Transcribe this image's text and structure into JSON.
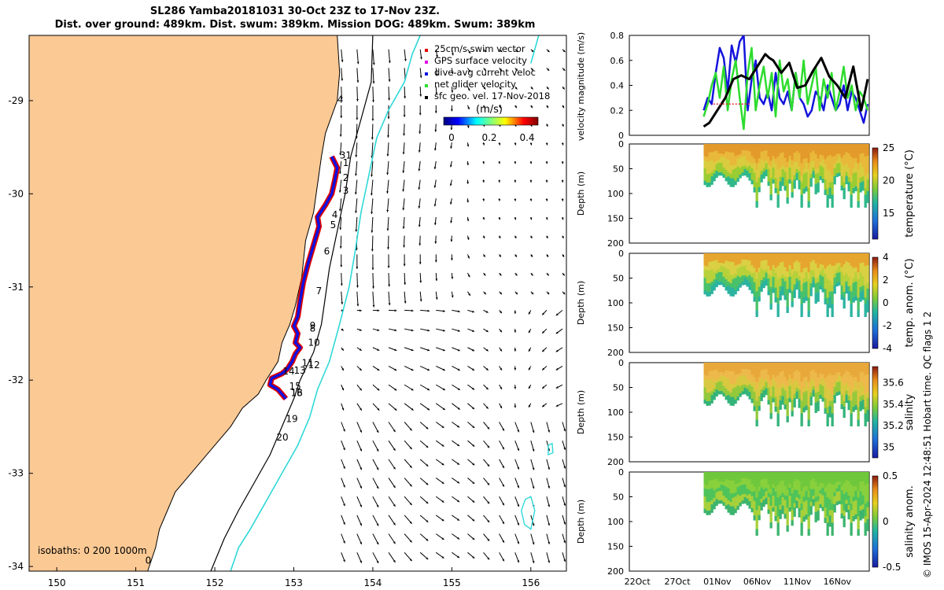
{
  "header": {
    "title_line1": "SL286 Yamba20181031 30-Oct 23Z to 17-Nov 23Z.",
    "title_line2": "Dist. over ground: 489km. Dist. swum: 389km. Mission DOG: 489km. Swum: 389km"
  },
  "credit": "© IMOS 15-Apr-2024 12:48:51 Hobart time. QC flags 1  2",
  "colors": {
    "land": "#FBC994",
    "track_red": "#E00000",
    "track_blue": "#1010E0",
    "isobath_cyan": "#30D8D8",
    "speed_blue": "#1414DC",
    "speed_green": "#2EDC2E",
    "speed_black": "#000000",
    "speed_red": "#E03030"
  },
  "chart_data": [
    {
      "type": "map",
      "name": "glider-track-map",
      "x_ticks": [
        "150",
        "151",
        "152",
        "153",
        "154",
        "155",
        "156"
      ],
      "y_ticks": [
        "-29",
        "-30",
        "-31",
        "-32",
        "-33",
        "-34"
      ],
      "xlim": [
        149.65,
        156.45
      ],
      "ylim": [
        -34.05,
        -28.3
      ],
      "legend": [
        {
          "label": "25cm/s swim vector",
          "marker": "red"
        },
        {
          "label": "GPS surface velocity",
          "marker": "magenta"
        },
        {
          "label": "dive-avg current veloc",
          "marker": "blue"
        },
        {
          "label": "net glider velocity",
          "marker": "green"
        },
        {
          "label": "sfc geo. vel. 17-Nov-2018",
          "marker": "black"
        }
      ],
      "colorbar": {
        "label": "(m/s)",
        "ticks": [
          "0",
          "0.2",
          "0.4"
        ],
        "range": [
          0,
          0.5
        ]
      },
      "isobath_label": "isobaths: 0   200  1000m",
      "track_labels": [
        {
          "text": "31",
          "lon": 153.58,
          "lat": -29.62
        },
        {
          "text": "1",
          "lon": 153.62,
          "lat": -29.7
        },
        {
          "text": "2",
          "lon": 153.62,
          "lat": -29.86
        },
        {
          "text": "3",
          "lon": 153.62,
          "lat": -30.0
        },
        {
          "text": "4",
          "lon": 153.48,
          "lat": -30.26
        },
        {
          "text": "5",
          "lon": 153.46,
          "lat": -30.37
        },
        {
          "text": "6",
          "lon": 153.38,
          "lat": -30.65
        },
        {
          "text": "7",
          "lon": 153.28,
          "lat": -31.08
        },
        {
          "text": "8",
          "lon": 153.2,
          "lat": -31.48
        },
        {
          "text": "9",
          "lon": 153.2,
          "lat": -31.45
        },
        {
          "text": "10",
          "lon": 153.18,
          "lat": -31.63
        },
        {
          "text": "11",
          "lon": 153.1,
          "lat": -31.85
        },
        {
          "text": "12",
          "lon": 153.18,
          "lat": -31.87
        },
        {
          "text": "13",
          "lon": 153.0,
          "lat": -31.93
        },
        {
          "text": "14",
          "lon": 152.86,
          "lat": -31.94
        },
        {
          "text": "15",
          "lon": 152.94,
          "lat": -32.1
        },
        {
          "text": "16",
          "lon": 152.96,
          "lat": -32.17
        },
        {
          "text": "18",
          "lon": 152.96,
          "lat": -32.17
        },
        {
          "text": "19",
          "lon": 152.9,
          "lat": -32.45
        },
        {
          "text": "20",
          "lon": 152.78,
          "lat": -32.65
        },
        {
          "text": "4",
          "lon": 153.55,
          "lat": -29.02
        },
        {
          "text": "0",
          "lon": 151.12,
          "lat": -33.97
        }
      ],
      "coastline": [
        [
          153.55,
          -28.3
        ],
        [
          153.58,
          -28.7
        ],
        [
          153.55,
          -29.0
        ],
        [
          153.4,
          -29.35
        ],
        [
          153.35,
          -29.6
        ],
        [
          153.3,
          -29.9
        ],
        [
          153.25,
          -30.2
        ],
        [
          153.15,
          -30.5
        ],
        [
          153.1,
          -30.9
        ],
        [
          153.02,
          -31.2
        ],
        [
          152.95,
          -31.4
        ],
        [
          152.85,
          -31.6
        ],
        [
          152.8,
          -31.8
        ],
        [
          152.65,
          -32.0
        ],
        [
          152.55,
          -32.15
        ],
        [
          152.35,
          -32.3
        ],
        [
          152.2,
          -32.5
        ],
        [
          152.0,
          -32.7
        ],
        [
          151.8,
          -32.9
        ],
        [
          151.65,
          -33.05
        ],
        [
          151.5,
          -33.2
        ],
        [
          151.4,
          -33.4
        ],
        [
          151.3,
          -33.6
        ],
        [
          151.25,
          -33.8
        ],
        [
          151.15,
          -34.05
        ]
      ],
      "isobath_200": [
        [
          154.0,
          -28.3
        ],
        [
          153.98,
          -28.8
        ],
        [
          153.85,
          -29.2
        ],
        [
          153.72,
          -29.6
        ],
        [
          153.65,
          -30.0
        ],
        [
          153.55,
          -30.4
        ],
        [
          153.45,
          -30.8
        ],
        [
          153.4,
          -31.1
        ],
        [
          153.35,
          -31.4
        ],
        [
          153.25,
          -31.7
        ],
        [
          153.08,
          -32.0
        ],
        [
          153.0,
          -32.2
        ],
        [
          152.85,
          -32.5
        ],
        [
          152.7,
          -32.8
        ],
        [
          152.5,
          -33.1
        ],
        [
          152.3,
          -33.4
        ],
        [
          152.12,
          -33.7
        ],
        [
          151.95,
          -34.05
        ]
      ],
      "isobath_1000": [
        [
          154.6,
          -28.3
        ],
        [
          154.5,
          -28.5
        ],
        [
          154.4,
          -28.8
        ],
        [
          154.2,
          -29.1
        ],
        [
          154.05,
          -29.4
        ],
        [
          153.95,
          -29.8
        ],
        [
          153.85,
          -30.2
        ],
        [
          153.78,
          -30.6
        ],
        [
          153.7,
          -31.0
        ],
        [
          153.58,
          -31.4
        ],
        [
          153.45,
          -31.8
        ],
        [
          153.3,
          -32.1
        ],
        [
          153.2,
          -32.4
        ],
        [
          153.05,
          -32.7
        ],
        [
          152.85,
          -33.0
        ],
        [
          152.65,
          -33.3
        ],
        [
          152.45,
          -33.6
        ],
        [
          152.3,
          -33.8
        ],
        [
          152.2,
          -34.05
        ]
      ],
      "track": [
        [
          153.48,
          -29.6
        ],
        [
          153.55,
          -29.72
        ],
        [
          153.52,
          -29.85
        ],
        [
          153.48,
          -30.0
        ],
        [
          153.4,
          -30.12
        ],
        [
          153.3,
          -30.25
        ],
        [
          153.32,
          -30.35
        ],
        [
          153.25,
          -30.55
        ],
        [
          153.18,
          -30.75
        ],
        [
          153.12,
          -30.95
        ],
        [
          153.08,
          -31.15
        ],
        [
          153.05,
          -31.32
        ],
        [
          153.0,
          -31.42
        ],
        [
          153.05,
          -31.5
        ],
        [
          153.02,
          -31.6
        ],
        [
          153.08,
          -31.65
        ],
        [
          153.02,
          -31.72
        ],
        [
          152.98,
          -31.8
        ],
        [
          152.92,
          -31.88
        ],
        [
          152.85,
          -31.93
        ],
        [
          152.72,
          -31.98
        ],
        [
          152.7,
          -32.05
        ],
        [
          152.8,
          -32.1
        ],
        [
          152.85,
          -32.15
        ],
        [
          152.9,
          -32.2
        ]
      ]
    },
    {
      "type": "line",
      "name": "velocity-magnitude",
      "ylabel": "velocity magnitude (m/s)",
      "ylim": [
        0,
        0.8
      ],
      "y_ticks": [
        "0",
        "0.2",
        "0.4",
        "0.6",
        "0.8"
      ],
      "x_range_days": [
        0,
        30
      ],
      "series": [
        {
          "name": "blue",
          "x": [
            9.3,
            9.8,
            10.3,
            10.8,
            11.3,
            11.8,
            12.3,
            12.8,
            13.3,
            13.8,
            14.3,
            14.8,
            15.3,
            15.8,
            16.3,
            16.8,
            17.3,
            17.8,
            18.3,
            18.8,
            19.3,
            19.8,
            20.3,
            20.8,
            21.3,
            21.8,
            22.3,
            22.8,
            23.3,
            23.8,
            24.3,
            24.8,
            25.3,
            25.8,
            26.3,
            26.8,
            27.3,
            27.8,
            28.3,
            28.8,
            29.3,
            29.8
          ],
          "y": [
            0.2,
            0.3,
            0.25,
            0.5,
            0.7,
            0.62,
            0.35,
            0.72,
            0.58,
            0.75,
            0.8,
            0.2,
            0.45,
            0.6,
            0.3,
            0.25,
            0.35,
            0.2,
            0.5,
            0.3,
            0.25,
            0.35,
            0.2,
            0.5,
            0.3,
            0.25,
            0.15,
            0.2,
            0.35,
            0.3,
            0.2,
            0.4,
            0.3,
            0.2,
            0.25,
            0.4,
            0.2,
            0.35,
            0.3,
            0.2,
            0.1,
            0.25
          ]
        },
        {
          "name": "green",
          "x": [
            9.3,
            9.8,
            10.3,
            10.8,
            11.3,
            11.8,
            12.3,
            12.8,
            13.3,
            13.8,
            14.3,
            14.8,
            15.3,
            15.8,
            16.3,
            16.8,
            17.3,
            17.8,
            18.3,
            18.8,
            19.3,
            19.8,
            20.3,
            20.8,
            21.3,
            21.8,
            22.3,
            22.8,
            23.3,
            23.8,
            24.3,
            24.8,
            25.3,
            25.8,
            26.3,
            26.8,
            27.3,
            27.8,
            28.3,
            28.8,
            29.3,
            29.8
          ],
          "y": [
            0.15,
            0.25,
            0.4,
            0.5,
            0.3,
            0.55,
            0.2,
            0.45,
            0.6,
            0.3,
            0.05,
            0.5,
            0.7,
            0.2,
            0.4,
            0.55,
            0.3,
            0.5,
            0.15,
            0.6,
            0.35,
            0.45,
            0.2,
            0.5,
            0.3,
            0.6,
            0.25,
            0.4,
            0.55,
            0.2,
            0.45,
            0.3,
            0.5,
            0.2,
            0.35,
            0.55,
            0.3,
            0.4,
            0.2,
            0.35,
            0.3,
            0.2
          ]
        },
        {
          "name": "black",
          "x": [
            9.3,
            10,
            11,
            12,
            13,
            14,
            15,
            16,
            17,
            17.5,
            18,
            19,
            20,
            21,
            22,
            23,
            24,
            25,
            26,
            27,
            28,
            29,
            29.8
          ],
          "y": [
            0.07,
            0.1,
            0.2,
            0.3,
            0.45,
            0.48,
            0.45,
            0.55,
            0.65,
            0.62,
            0.6,
            0.5,
            0.58,
            0.38,
            0.4,
            0.52,
            0.62,
            0.47,
            0.4,
            0.3,
            0.55,
            0.2,
            0.45
          ]
        },
        {
          "name": "red",
          "x": [
            10.5,
            15.0
          ],
          "y": [
            0.25,
            0.25
          ]
        }
      ]
    },
    {
      "type": "heatmap",
      "name": "temperature",
      "ylabel": "Depth (m)",
      "cbar_label": "temperature (°C)",
      "cbar_ticks": [
        "15",
        "20",
        "25"
      ],
      "cbar_range": [
        11,
        25
      ],
      "y_ticks": [
        "0",
        "50",
        "100",
        "150",
        "200"
      ],
      "ylim": [
        0,
        200
      ]
    },
    {
      "type": "heatmap",
      "name": "temp-anomaly",
      "ylabel": "Depth (m)",
      "cbar_label": "temp. anom. (°C)",
      "cbar_ticks": [
        "-4",
        "-2",
        "0",
        "2",
        "4"
      ],
      "cbar_range": [
        -4,
        4
      ],
      "y_ticks": [
        "0",
        "50",
        "100",
        "150",
        "200"
      ],
      "ylim": [
        0,
        200
      ]
    },
    {
      "type": "heatmap",
      "name": "salinity",
      "ylabel": "Depth (m)",
      "cbar_label": "salinity",
      "cbar_ticks": [
        "35",
        "35.2",
        "35.4",
        "35.6"
      ],
      "cbar_range": [
        34.9,
        35.75
      ],
      "y_ticks": [
        "0",
        "50",
        "100",
        "150",
        "200"
      ],
      "ylim": [
        0,
        200
      ]
    },
    {
      "type": "heatmap",
      "name": "salinity-anomaly",
      "ylabel": "Depth (m)",
      "cbar_label": "salinity anom.",
      "cbar_ticks": [
        "-0.5",
        "0",
        "0.5"
      ],
      "cbar_range": [
        -0.5,
        0.5
      ],
      "y_ticks": [
        "0",
        "50",
        "100",
        "150",
        "200"
      ],
      "ylim": [
        0,
        200
      ],
      "x_ticks": [
        {
          "label": "22Oct",
          "day": 1
        },
        {
          "label": "27Oct",
          "day": 6
        },
        {
          "label": "01Nov",
          "day": 11
        },
        {
          "label": "06Nov",
          "day": 16
        },
        {
          "label": "11Nov",
          "day": 21
        },
        {
          "label": "16Nov",
          "day": 26
        }
      ],
      "x_range_days": [
        0,
        30
      ]
    }
  ]
}
